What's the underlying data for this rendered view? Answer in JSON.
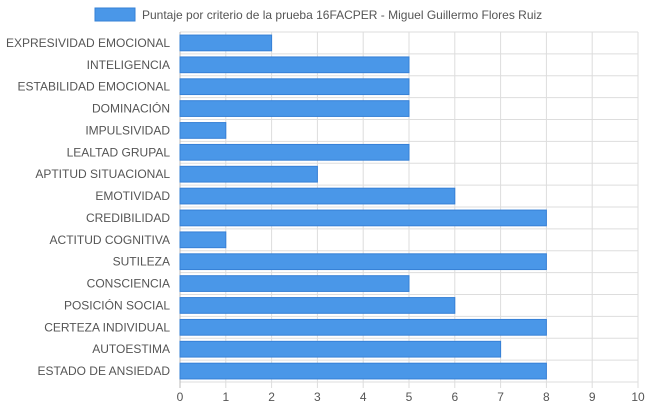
{
  "chart_data": {
    "type": "bar",
    "orientation": "horizontal",
    "legend_position": "top",
    "grid": true,
    "xlim": [
      0,
      10
    ],
    "x_ticks": [
      "0",
      "1",
      "2",
      "3",
      "4",
      "5",
      "6",
      "7",
      "8",
      "9",
      "10"
    ],
    "categories": [
      "EXPRESIVIDAD EMOCIONAL",
      "INTELIGENCIA",
      "ESTABILIDAD EMOCIONAL",
      "DOMINACIÓN",
      "IMPULSIVIDAD",
      "LEALTAD GRUPAL",
      "APTITUD SITUACIONAL",
      "EMOTIVIDAD",
      "CREDIBILIDAD",
      "ACTITUD COGNITIVA",
      "SUTILEZA",
      "CONSCIENCIA",
      "POSICIÓN SOCIAL",
      "CERTEZA INDIVIDUAL",
      "AUTOESTIMA",
      "ESTADO DE ANSIEDAD"
    ],
    "series": [
      {
        "name": "Puntaje por criterio de la prueba 16FACPER - Miguel Guillermo Flores Ruiz",
        "color": "#4a97e8",
        "border_color": "#3680d6",
        "values": [
          2,
          5,
          5,
          5,
          1,
          5,
          3,
          6,
          8,
          1,
          8,
          5,
          6,
          8,
          7,
          8
        ]
      }
    ]
  }
}
